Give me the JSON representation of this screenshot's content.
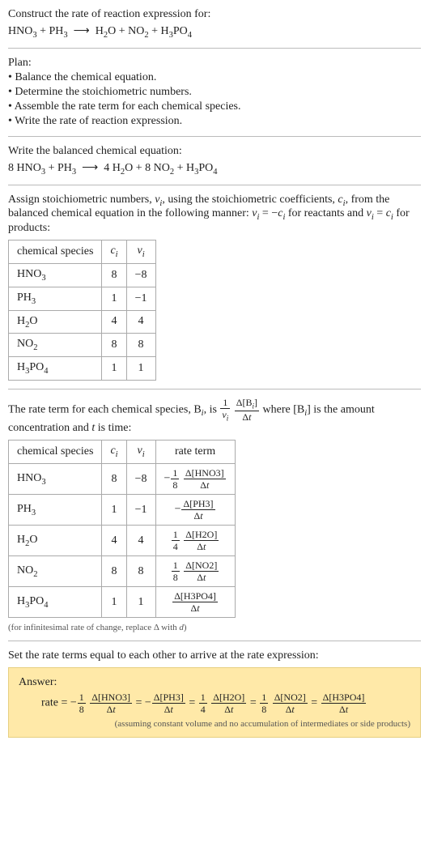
{
  "header": {
    "prompt": "Construct the rate of reaction expression for:",
    "equation_html": "HNO<span class='sub'>3</span> + PH<span class='sub'>3</span> &nbsp;⟶&nbsp; H<span class='sub'>2</span>O + NO<span class='sub'>2</span> + H<span class='sub'>3</span>PO<span class='sub'>4</span>"
  },
  "plan": {
    "title": "Plan:",
    "items": [
      "• Balance the chemical equation.",
      "• Determine the stoichiometric numbers.",
      "• Assemble the rate term for each chemical species.",
      "• Write the rate of reaction expression."
    ]
  },
  "balanced": {
    "intro": "Write the balanced chemical equation:",
    "equation_html": "8 HNO<span class='sub'>3</span> + PH<span class='sub'>3</span> &nbsp;⟶&nbsp; 4 H<span class='sub'>2</span>O + 8 NO<span class='sub'>2</span> + H<span class='sub'>3</span>PO<span class='sub'>4</span>"
  },
  "stoich_intro_html": "Assign stoichiometric numbers, <span class='ital'>ν<span class='subi'>i</span></span>, using the stoichiometric coefficients, <span class='ital'>c<span class='subi'>i</span></span>, from the balanced chemical equation in the following manner: <span class='ital'>ν<span class='subi'>i</span></span> = −<span class='ital'>c<span class='subi'>i</span></span> for reactants and <span class='ital'>ν<span class='subi'>i</span></span> = <span class='ital'>c<span class='subi'>i</span></span> for products:",
  "table1": {
    "headers": {
      "species": "chemical species",
      "ci_html": "<span class='ital'>c<span class='subi'>i</span></span>",
      "vi_html": "<span class='ital'>ν<span class='subi'>i</span></span>"
    },
    "rows": [
      {
        "species_html": "HNO<span class='sub'>3</span>",
        "ci": "8",
        "vi": "−8"
      },
      {
        "species_html": "PH<span class='sub'>3</span>",
        "ci": "1",
        "vi": "−1"
      },
      {
        "species_html": "H<span class='sub'>2</span>O",
        "ci": "4",
        "vi": "4"
      },
      {
        "species_html": "NO<span class='sub'>2</span>",
        "ci": "8",
        "vi": "8"
      },
      {
        "species_html": "H<span class='sub'>3</span>PO<span class='sub'>4</span>",
        "ci": "1",
        "vi": "1"
      }
    ]
  },
  "rate_term_intro_html": "The rate term for each chemical species, B<span class='subi'>i</span>, is <span class='frac'><span class='num'>1</span><span class='den'><span class='ital'>ν<span class='subi'>i</span></span></span></span> <span class='frac'><span class='num'>Δ[B<span class='subi'>i</span>]</span><span class='den'>Δ<span class='ital'>t</span></span></span> where [B<span class='subi'>i</span>] is the amount concentration and <span class='ital'>t</span> is time:",
  "table2": {
    "headers": {
      "species": "chemical species",
      "ci_html": "<span class='ital'>c<span class='subi'>i</span></span>",
      "vi_html": "<span class='ital'>ν<span class='subi'>i</span></span>",
      "rate": "rate term"
    },
    "rows": [
      {
        "species_html": "HNO<span class='sub'>3</span>",
        "ci": "8",
        "vi": "−8",
        "rate_html": "−<span class='frac'><span class='num'>1</span><span class='den'>8</span></span> <span class='frac'><span class='num'>Δ[HNO3]</span><span class='den'>Δ<span class='ital'>t</span></span></span>"
      },
      {
        "species_html": "PH<span class='sub'>3</span>",
        "ci": "1",
        "vi": "−1",
        "rate_html": "−<span class='frac'><span class='num'>Δ[PH3]</span><span class='den'>Δ<span class='ital'>t</span></span></span>"
      },
      {
        "species_html": "H<span class='sub'>2</span>O",
        "ci": "4",
        "vi": "4",
        "rate_html": "<span class='frac'><span class='num'>1</span><span class='den'>4</span></span> <span class='frac'><span class='num'>Δ[H2O]</span><span class='den'>Δ<span class='ital'>t</span></span></span>"
      },
      {
        "species_html": "NO<span class='sub'>2</span>",
        "ci": "8",
        "vi": "8",
        "rate_html": "<span class='frac'><span class='num'>1</span><span class='den'>8</span></span> <span class='frac'><span class='num'>Δ[NO2]</span><span class='den'>Δ<span class='ital'>t</span></span></span>"
      },
      {
        "species_html": "H<span class='sub'>3</span>PO<span class='sub'>4</span>",
        "ci": "1",
        "vi": "1",
        "rate_html": "<span class='frac'><span class='num'>Δ[H3PO4]</span><span class='den'>Δ<span class='ital'>t</span></span></span>"
      }
    ],
    "footnote_html": "(for infinitesimal rate of change, replace Δ with <span class='ital'>d</span>)"
  },
  "final_intro": "Set the rate terms equal to each other to arrive at the rate expression:",
  "answer": {
    "label": "Answer:",
    "expr_html": "rate = −<span class='frac'><span class='num'>1</span><span class='den'>8</span></span> <span class='frac'><span class='num'>Δ[HNO3]</span><span class='den'>Δ<span class='ital'>t</span></span></span> = −<span class='frac'><span class='num'>Δ[PH3]</span><span class='den'>Δ<span class='ital'>t</span></span></span> = <span class='frac'><span class='num'>1</span><span class='den'>4</span></span> <span class='frac'><span class='num'>Δ[H2O]</span><span class='den'>Δ<span class='ital'>t</span></span></span> = <span class='frac'><span class='num'>1</span><span class='den'>8</span></span> <span class='frac'><span class='num'>Δ[NO2]</span><span class='den'>Δ<span class='ital'>t</span></span></span> = <span class='frac'><span class='num'>Δ[H3PO4]</span><span class='den'>Δ<span class='ital'>t</span></span></span>",
    "note": "(assuming constant volume and no accumulation of intermediates or side products)"
  }
}
